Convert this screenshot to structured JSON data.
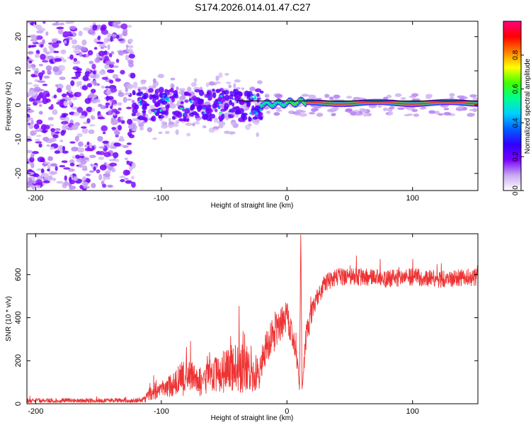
{
  "figure_title": "S174.2026.014.01.47.C27",
  "chart_data": [
    {
      "type": "heatmap",
      "title": "S174.2026.014.01.47.C27",
      "xlabel": "Height of straight line (km)",
      "ylabel": "Frequency (Hz)",
      "xlim": [
        -207,
        152
      ],
      "ylim": [
        -25,
        24.5
      ],
      "xticks": [
        -200,
        -100,
        0,
        100
      ],
      "yticks": [
        -20,
        -10,
        0,
        10,
        20
      ],
      "colorbar": {
        "label": "Normalized spectral amplitude",
        "range": [
          0,
          1
        ],
        "ticks": [
          "0.0",
          "0.2",
          "0.4",
          "0.6",
          "0.8"
        ],
        "tick_values": [
          0.0,
          0.2,
          0.4,
          0.6,
          0.8
        ],
        "colormap": [
          "#ffffff",
          "#c8a8f0",
          "#7a00ff",
          "#3000ff",
          "#0060ff",
          "#00d0ff",
          "#00ff90",
          "#40ff00",
          "#ffff00",
          "#ff8000",
          "#ff0000",
          "#ff0080"
        ]
      },
      "regions": [
        {
          "x_range": [
            -207,
            -122
          ],
          "freq_halfwidth": 24.5,
          "level": "noise",
          "amplitude": 0.05
        },
        {
          "x_range": [
            -122,
            -20
          ],
          "freq_halfwidth": 10,
          "level": "medium",
          "amplitude": 0.15
        },
        {
          "x_range": [
            -20,
            152
          ],
          "freq_halfwidth": 3,
          "level": "high",
          "amplitude": 0.95
        }
      ],
      "reference_line": {
        "from": [
          -40,
          1.2
        ],
        "to": [
          152,
          1.2
        ]
      }
    },
    {
      "type": "line",
      "xlabel": "Height of straight line (km)",
      "ylabel": "SNR (10 * v/v)",
      "xlim": [
        -207,
        152
      ],
      "ylim": [
        0,
        790
      ],
      "xticks": [
        -200,
        -100,
        0,
        100
      ],
      "yticks": [
        0,
        200,
        400,
        600
      ],
      "series": [
        {
          "name": "SNR",
          "color": "#ee3333",
          "x": [
            -207,
            -150,
            -120,
            -113,
            -110,
            -100,
            -90,
            -82,
            -80,
            -70,
            -60,
            -50,
            -42,
            -30,
            -22,
            -20,
            -15,
            -5,
            0,
            5,
            9,
            10,
            11,
            12,
            15,
            20,
            25,
            30,
            40,
            60,
            80,
            100,
            120,
            140,
            152
          ],
          "mean": [
            15,
            15,
            15,
            20,
            45,
            65,
            90,
            120,
            150,
            100,
            130,
            150,
            170,
            160,
            140,
            200,
            280,
            370,
            410,
            300,
            150,
            60,
            790,
            70,
            300,
            430,
            500,
            560,
            590,
            590,
            580,
            590,
            580,
            585,
            590
          ],
          "noise": [
            10,
            10,
            10,
            15,
            30,
            40,
            55,
            90,
            70,
            70,
            80,
            100,
            120,
            110,
            70,
            70,
            80,
            80,
            70,
            60,
            40,
            5,
            0,
            10,
            60,
            50,
            40,
            40,
            40,
            40,
            40,
            40,
            40,
            40,
            40
          ]
        }
      ]
    }
  ]
}
